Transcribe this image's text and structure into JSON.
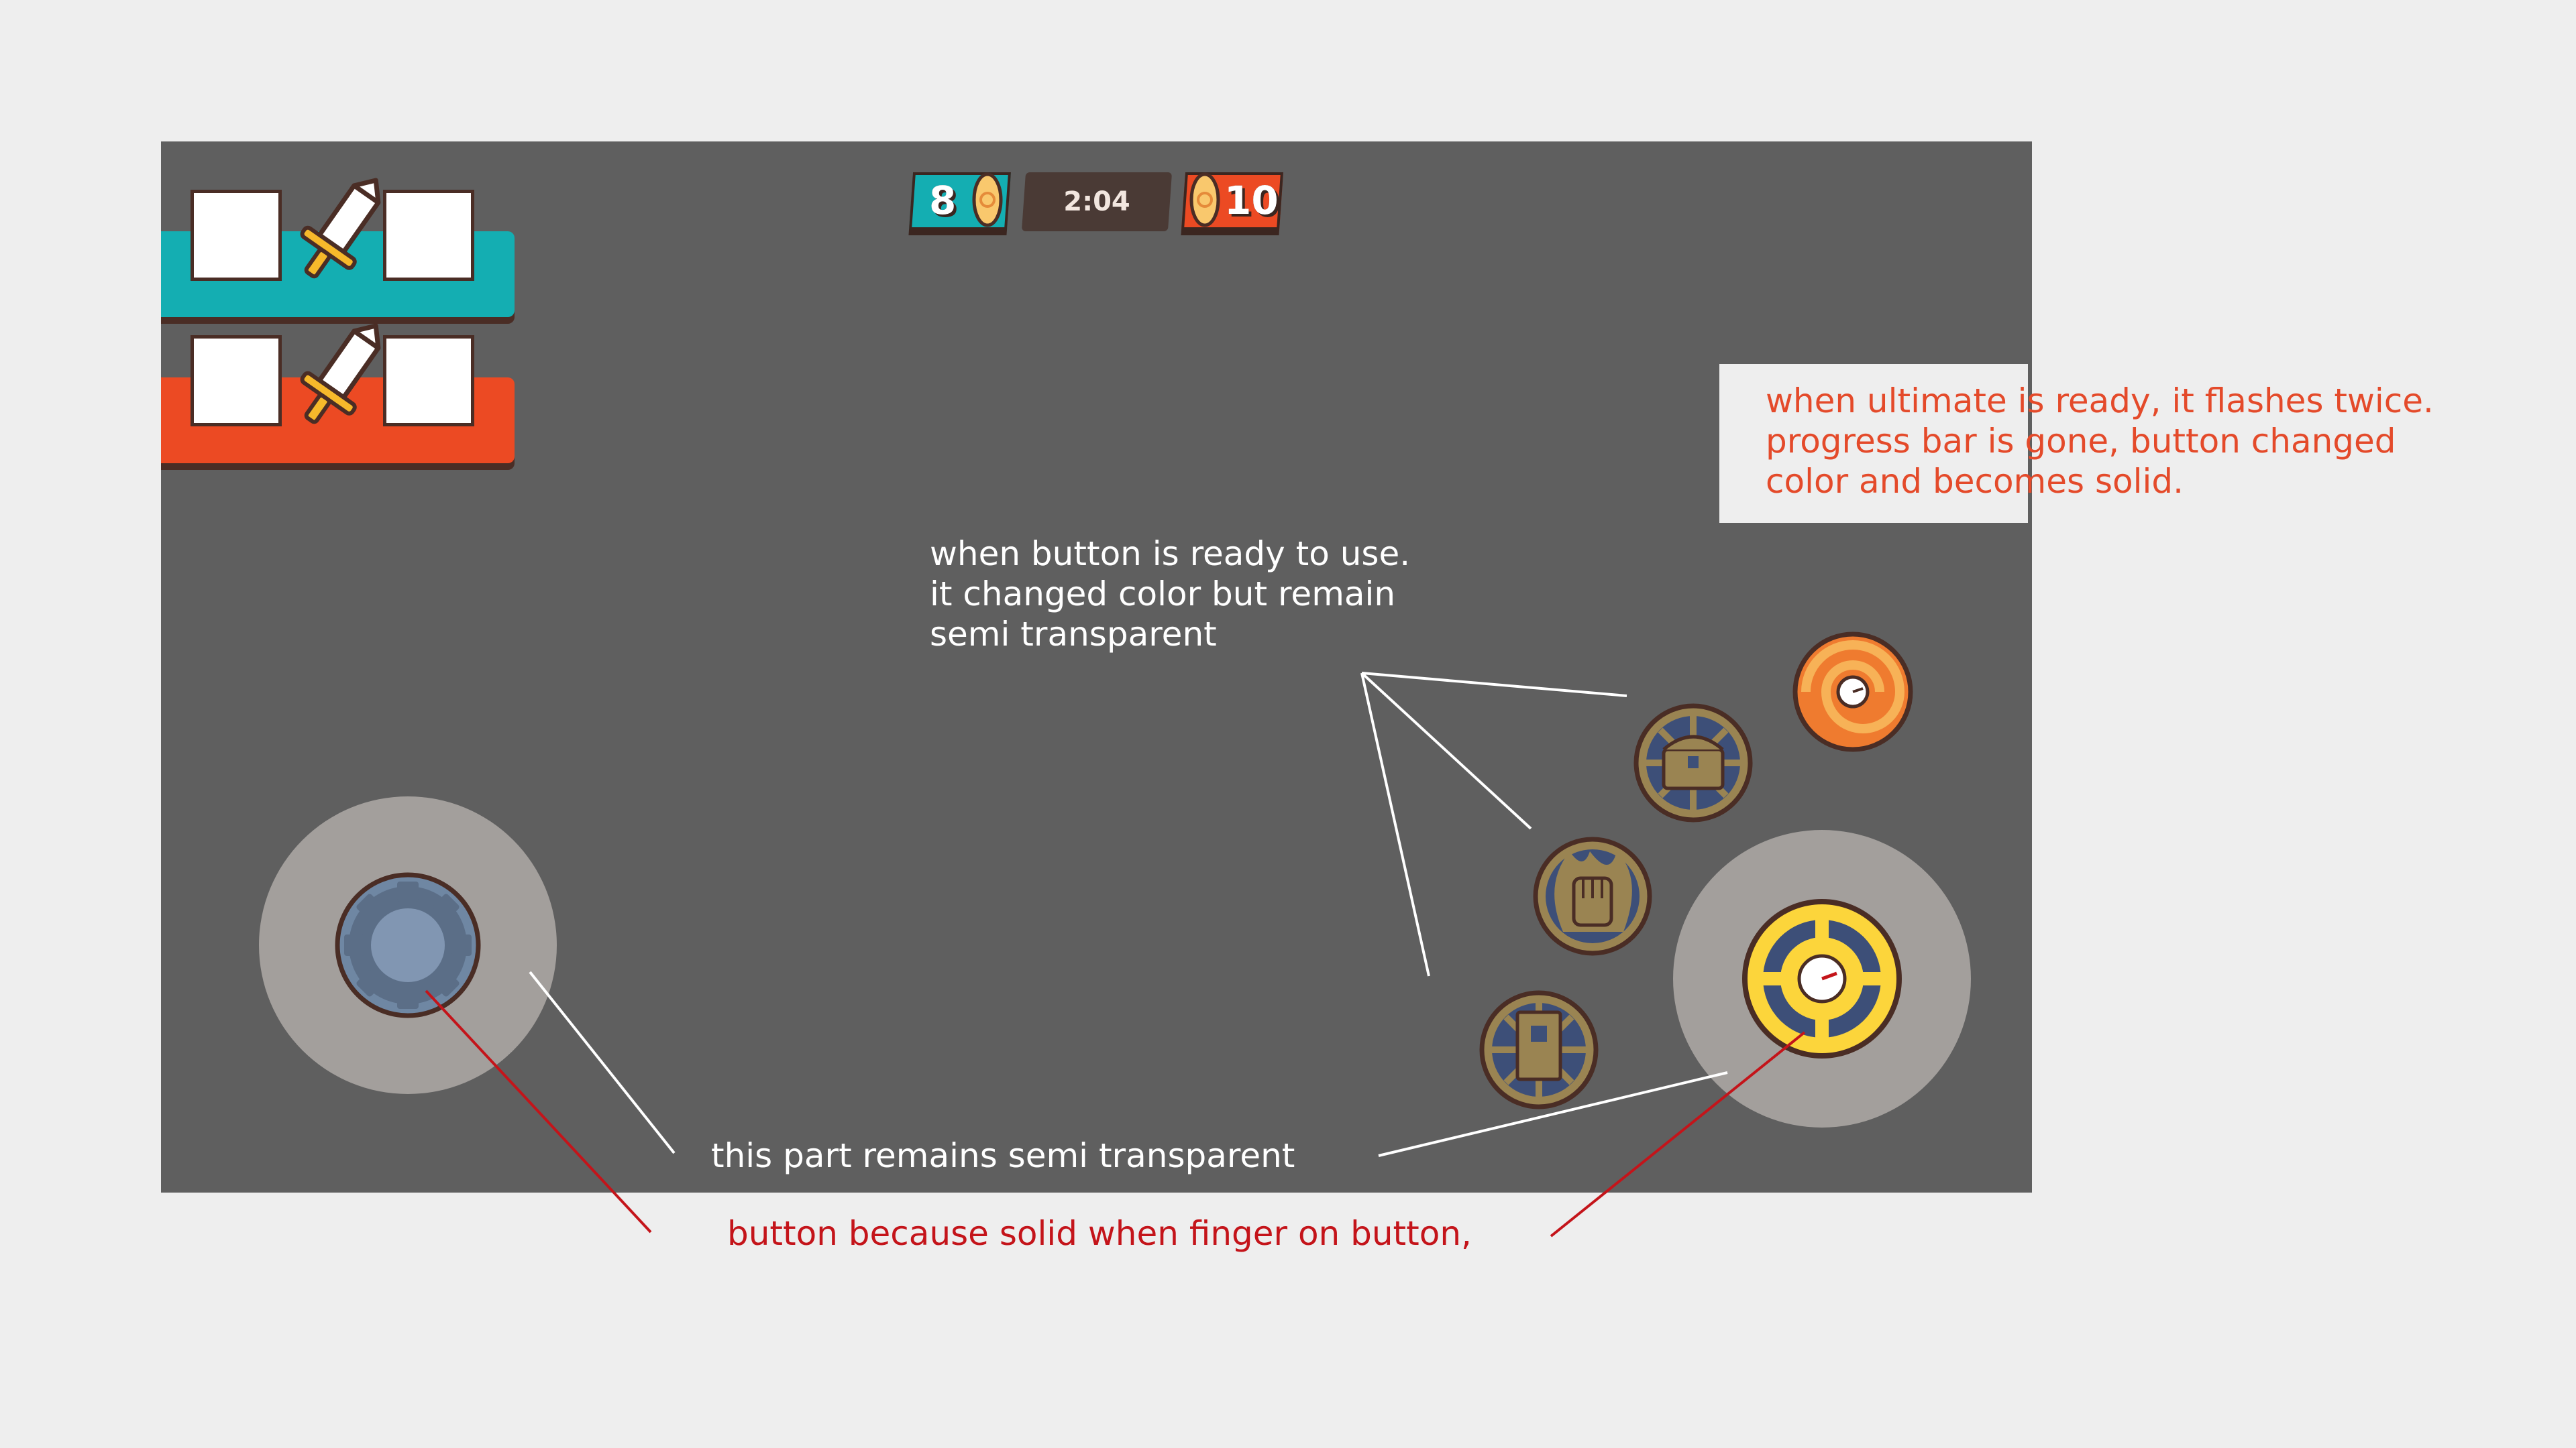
{
  "hud": {
    "blue_score": "8",
    "timer": "2:04",
    "red_score": "10"
  },
  "colors": {
    "blue_team": "#14aeb2",
    "red_team": "#ec4a23",
    "game_bg": "#5f5f5f",
    "outline": "#4a2d25",
    "ultimate_yellow": "#fcd53b",
    "ultimate_orange": "#ef7b2f",
    "skill_gold": "#9a8452"
  },
  "icons": {
    "vs": "sword-icon",
    "team_token": "seed-icon",
    "joystick": "gear-icon",
    "skill_1": "banner-icon",
    "skill_2": "fist-icon",
    "skill_3": "treasure-chest-icon",
    "ultimate_ready": "spiral-icon",
    "attack": "target-icon"
  },
  "annotations": {
    "ready_button": "when button is ready to use.\nit changed color but remain\nsemi transparent",
    "ultimate": "when ultimate is ready, it flashes twice.\nprogress bar is gone, button changed\ncolor and becomes solid.",
    "semi_transparent": "this part remains semi transparent",
    "solid_button": "button because solid when finger on button,"
  }
}
